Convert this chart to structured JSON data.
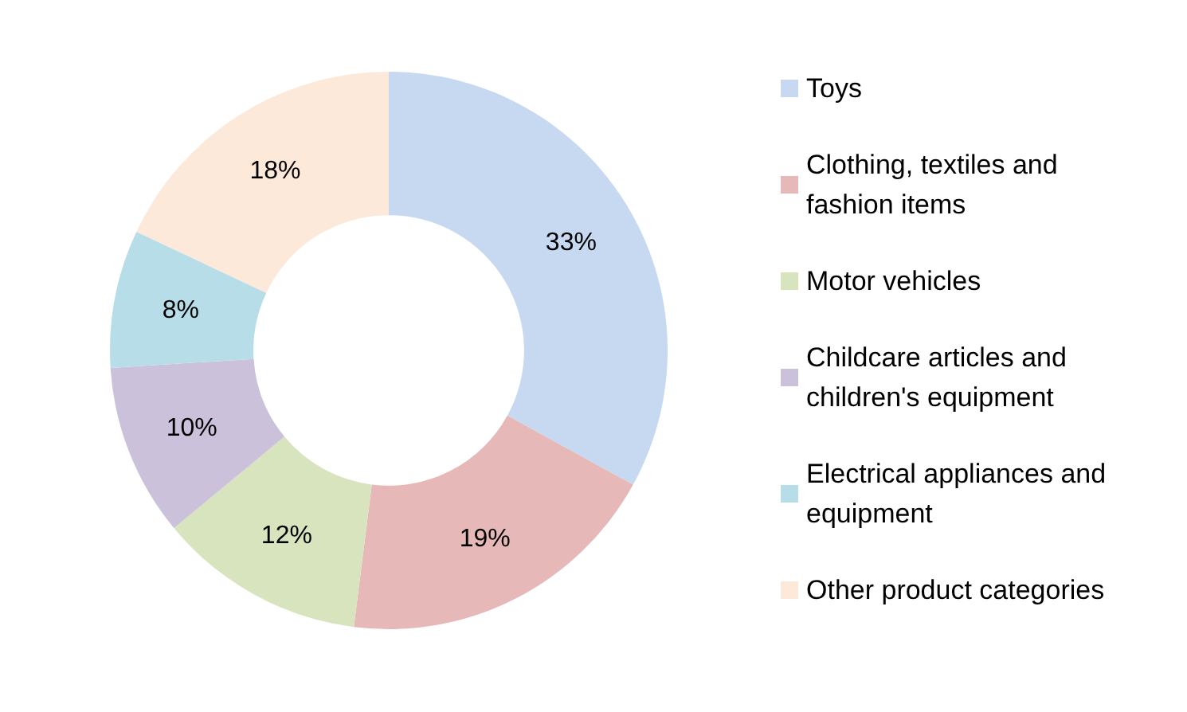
{
  "chart_data": {
    "type": "donut",
    "categories": [
      "Toys",
      "Clothing, textiles and fashion items",
      "Motor vehicles",
      "Childcare articles and children's equipment",
      "Electrical appliances and equipment",
      "Other product categories"
    ],
    "values": [
      33,
      19,
      12,
      10,
      8,
      18
    ],
    "value_labels": [
      "33%",
      "19%",
      "12%",
      "10%",
      "8%",
      "18%"
    ],
    "colors": [
      "#c6d9f1",
      "#e6b9b8",
      "#d7e4bd",
      "#ccc1da",
      "#b7dee8",
      "#fde9d9"
    ],
    "legend": "right"
  }
}
